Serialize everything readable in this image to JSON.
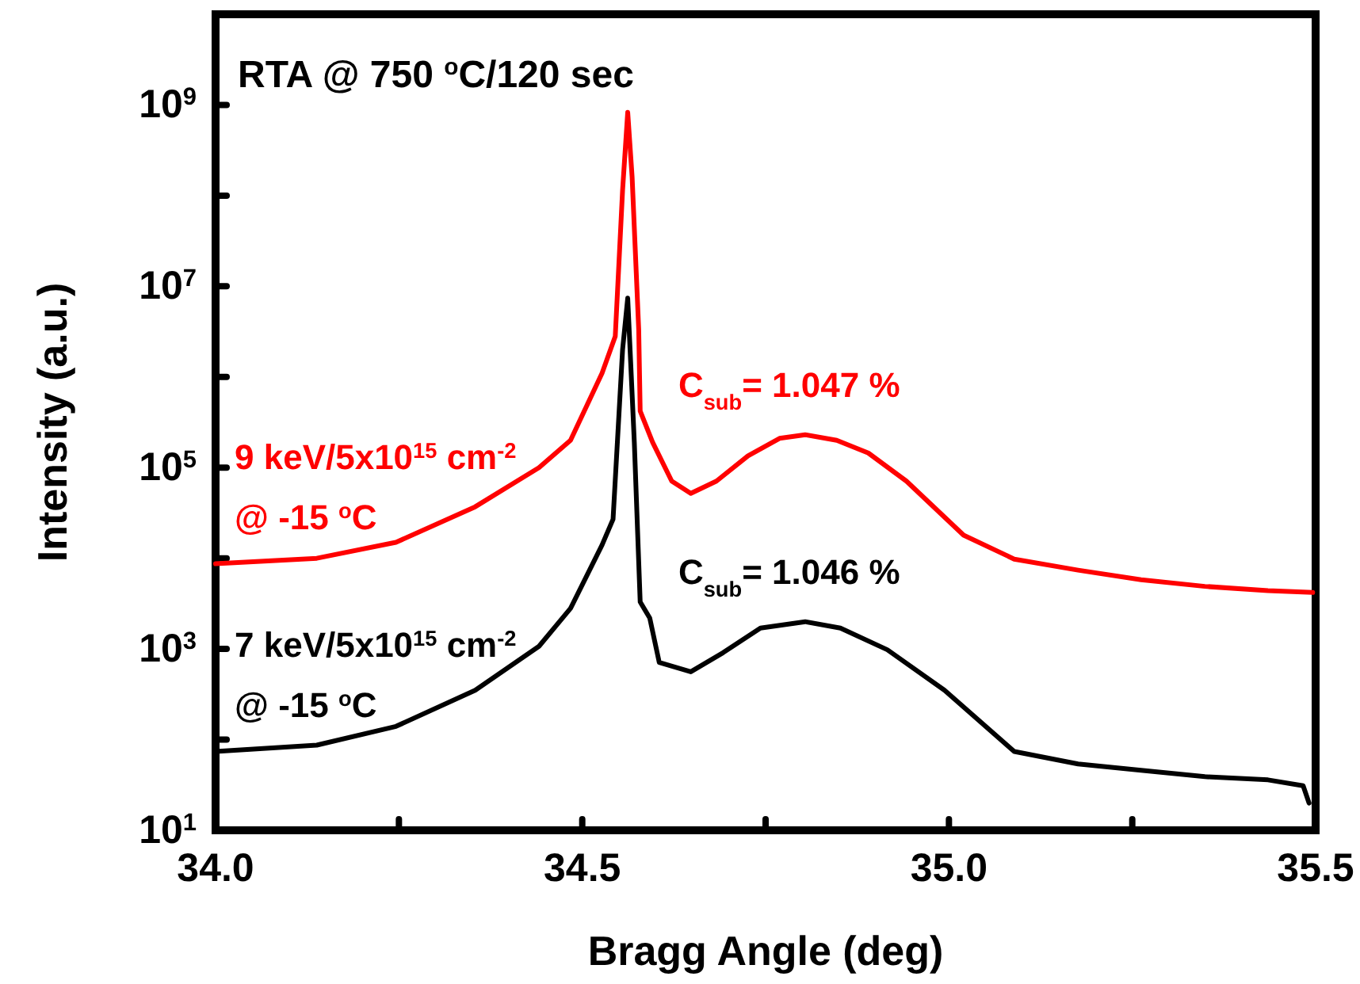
{
  "chart_data": {
    "type": "line",
    "xlabel": "Bragg Angle (deg)",
    "ylabel": "Intensity (a.u.)",
    "log": "y",
    "grid": false,
    "marker": "none",
    "line_style": "solid",
    "xlim": [
      34.0,
      35.5
    ],
    "ylim": [
      10,
      10000000000
    ],
    "xticks": [
      {
        "value": 34,
        "label": "34.0"
      },
      {
        "value": 34.25,
        "label": null
      },
      {
        "value": 34.5,
        "label": "34.5"
      },
      {
        "value": 34.75,
        "label": null
      },
      {
        "value": 35,
        "label": "35.0"
      },
      {
        "value": 35.25,
        "label": null
      },
      {
        "value": 35.5,
        "label": "35.5"
      }
    ],
    "yticks": [
      {
        "value": 10,
        "label": "10$^{1}$"
      },
      {
        "value": 100,
        "label": null
      },
      {
        "value": 1000,
        "label": "10$^{3}$"
      },
      {
        "value": 10000,
        "label": null
      },
      {
        "value": 100000,
        "label": "10$^{5}$"
      },
      {
        "value": 1000000,
        "label": null
      },
      {
        "value": 10000000,
        "label": "10$^{7}$"
      },
      {
        "value": 100000000,
        "label": null
      },
      {
        "value": 1000000000,
        "label": "10$^{9}$"
      }
    ],
    "annotations": [
      "RTA @ 750 $^{o}$C/120 sec",
      "C$_{sub}$= 1.047 %",
      "C$_{sub}$= 1.046 %"
    ],
    "series": [
      {
        "name": "9 keV/5x10$^{15}$ cm$^{-2}$\n@ -15 $^{o}$C",
        "color": "#ff0000",
        "x": [
          34.0,
          34.138,
          34.246,
          34.354,
          34.441,
          34.484,
          34.527,
          34.545,
          34.555,
          34.562,
          34.568,
          34.577,
          34.579,
          34.596,
          34.622,
          34.648,
          34.683,
          34.726,
          34.769,
          34.804,
          34.847,
          34.89,
          34.942,
          35.02,
          35.089,
          35.176,
          35.262,
          35.349,
          35.435,
          35.496
        ],
        "values": [
          8700,
          10000,
          15000,
          37000,
          100000,
          200000,
          1100000,
          2800000,
          115000000,
          830000000,
          160000000,
          3300000,
          420000,
          190000,
          71000,
          52000,
          71000,
          135000,
          210000,
          230000,
          200000,
          145000,
          71000,
          18000,
          9800,
          7400,
          5800,
          4900,
          4400,
          4200
        ]
      },
      {
        "name": "7 keV/5x10$^{15}$ cm$^{-2}$\n@ -15 $^{o}$C",
        "color": "#000000",
        "x": [
          34.0,
          34.138,
          34.246,
          34.354,
          34.441,
          34.484,
          34.527,
          34.542,
          34.555,
          34.562,
          34.571,
          34.579,
          34.592,
          34.605,
          34.648,
          34.692,
          34.743,
          34.804,
          34.852,
          34.916,
          34.994,
          35.089,
          35.176,
          35.262,
          35.349,
          35.435,
          35.483,
          35.491
        ],
        "values": [
          74,
          87,
          140,
          350,
          1070,
          2800,
          14000,
          27000,
          2000000,
          7400000,
          190000,
          3300,
          2200,
          710,
          560,
          910,
          1700,
          2000,
          1700,
          980,
          350,
          74,
          54,
          46,
          39,
          36,
          31,
          20
        ]
      }
    ]
  }
}
